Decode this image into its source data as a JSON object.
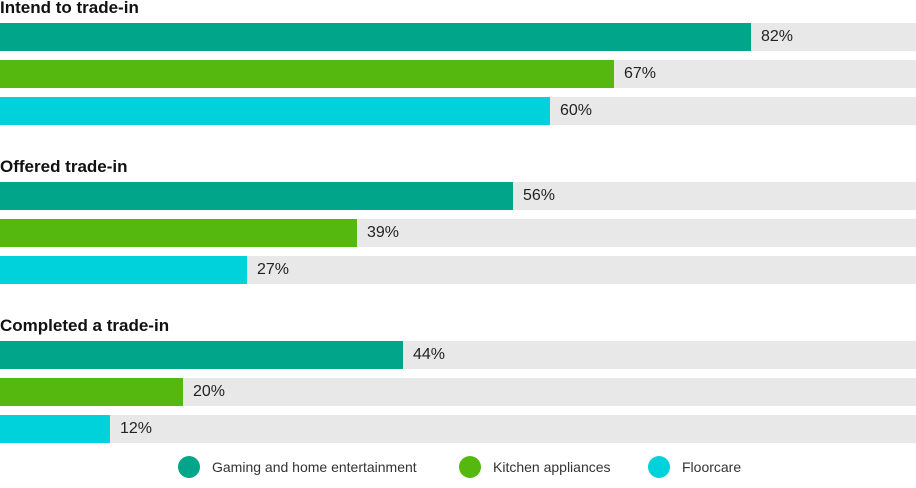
{
  "chart_data": {
    "type": "bar",
    "orientation": "horizontal",
    "value_suffix": "%",
    "xlim": [
      0,
      100
    ],
    "series": [
      {
        "name": "Gaming and home entertainment",
        "color": "#00a58a"
      },
      {
        "name": "Kitchen appliances",
        "color": "#55b80f"
      },
      {
        "name": "Floorcare",
        "color": "#00d2dc"
      }
    ],
    "groups": [
      {
        "title": "Intend to trade-in",
        "values": [
          82,
          67,
          60
        ],
        "labels": [
          "82%",
          "67%",
          "60%"
        ]
      },
      {
        "title": "Offered trade-in",
        "values": [
          56,
          39,
          27
        ],
        "labels": [
          "56%",
          "39%",
          "27%"
        ]
      },
      {
        "title": "Completed a trade-in",
        "values": [
          44,
          20,
          12
        ],
        "labels": [
          "44%",
          "20%",
          "12%"
        ]
      }
    ],
    "legend": {
      "position": "bottom-center",
      "marker": "circle"
    },
    "track_color": "#e8e8e8"
  }
}
